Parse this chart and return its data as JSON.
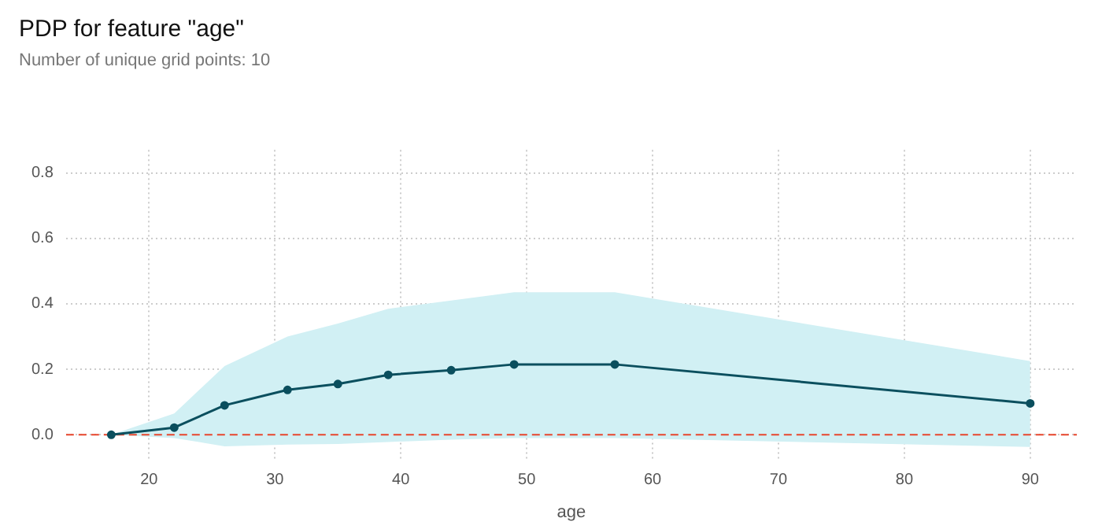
{
  "chart_data": {
    "type": "line",
    "title": "PDP for feature \"age\"",
    "subtitle": "Number of unique grid points: 10",
    "xlabel": "age",
    "x": [
      17,
      22,
      26,
      31,
      35,
      39,
      44,
      49,
      57,
      90
    ],
    "series": [
      {
        "color": "#0b4f5e",
        "values": [
          0,
          0.022,
          0.09,
          0.137,
          0.155,
          0.183,
          0.197,
          0.215,
          0.215,
          0.096
        ],
        "lower": [
          0,
          -0.01,
          -0.035,
          -0.03,
          -0.028,
          -0.022,
          -0.015,
          -0.01,
          -0.01,
          -0.037
        ],
        "upper": [
          0,
          0.065,
          0.21,
          0.3,
          0.34,
          0.385,
          0.41,
          0.435,
          0.435,
          0.225
        ]
      }
    ],
    "xlim": [
      13.4,
      93.7
    ],
    "xticks": [
      20,
      30,
      40,
      50,
      60,
      70,
      80,
      90
    ],
    "ylim": [
      -0.08,
      0.87
    ],
    "yticks": [
      {
        "value": 0,
        "label": "0.0"
      },
      {
        "value": 0.2,
        "label": "0.2"
      },
      {
        "value": 0.4,
        "label": "0.4"
      },
      {
        "value": 0.6,
        "label": "0.6"
      },
      {
        "value": 0.8,
        "label": "0.8"
      }
    ],
    "ref_lines": [
      {
        "axis": "y",
        "value": 0,
        "color": "#e8452c",
        "line_style": "dashed"
      }
    ],
    "grid": true,
    "legend": false,
    "marker": "circle",
    "line_style": "solid"
  }
}
